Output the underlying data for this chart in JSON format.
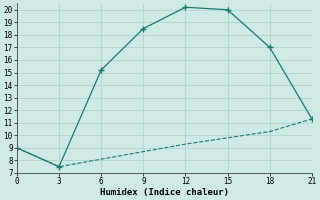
{
  "xlabel": "Humidex (Indice chaleur)",
  "line1_x": [
    0,
    3,
    6,
    9,
    12,
    15,
    18,
    21
  ],
  "line1_y": [
    9,
    7.5,
    15.2,
    18.5,
    20.2,
    20.0,
    17.0,
    11.3
  ],
  "line2_x": [
    0,
    3,
    6,
    9,
    12,
    15,
    18,
    21
  ],
  "line2_y": [
    9,
    7.5,
    8.1,
    8.7,
    9.3,
    9.8,
    10.3,
    11.3
  ],
  "line_color": "#1a7a6e",
  "bg_color": "#ceeae6",
  "grid_color": "#b0d4d0",
  "xlim": [
    0,
    21
  ],
  "ylim": [
    7,
    20.5
  ],
  "xticks": [
    0,
    3,
    6,
    9,
    12,
    15,
    18,
    21
  ],
  "yticks": [
    7,
    8,
    9,
    10,
    11,
    12,
    13,
    14,
    15,
    16,
    17,
    18,
    19,
    20
  ],
  "tick_fontsize": 5.5,
  "xlabel_fontsize": 6.5
}
